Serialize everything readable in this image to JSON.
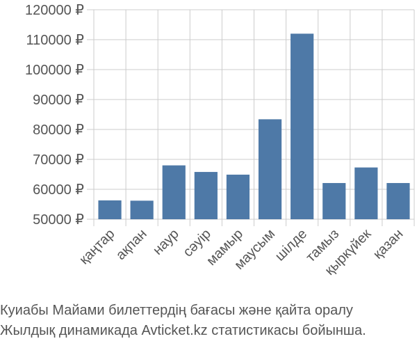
{
  "chart_data": {
    "type": "bar",
    "categories": [
      "қаңтар",
      "ақпан",
      "наур",
      "сәуір",
      "мамыр",
      "маусым",
      "шілде",
      "тамыз",
      "қыркүйек",
      "қазан"
    ],
    "values": [
      56300,
      56200,
      68000,
      65800,
      64900,
      83400,
      112000,
      62100,
      67300,
      62100
    ],
    "ylim": [
      50000,
      120000
    ],
    "yticks": [
      50000,
      60000,
      70000,
      80000,
      90000,
      100000,
      110000,
      120000
    ],
    "ytick_labels": [
      "50000 ₽",
      "60000 ₽",
      "70000 ₽",
      "80000 ₽",
      "90000 ₽",
      "100000 ₽",
      "110000 ₽",
      "120000 ₽"
    ],
    "grid": true,
    "title": "",
    "xlabel": "",
    "ylabel": ""
  },
  "colors": {
    "bar": "#4e79a7",
    "grid": "#cccccc",
    "text": "#555555"
  },
  "caption": {
    "line1": "Куиабы Майами билеттердің бағасы және қайта оралу",
    "line2": "Жылдық динамикада Avticket.kz статистикасы бойынша."
  }
}
